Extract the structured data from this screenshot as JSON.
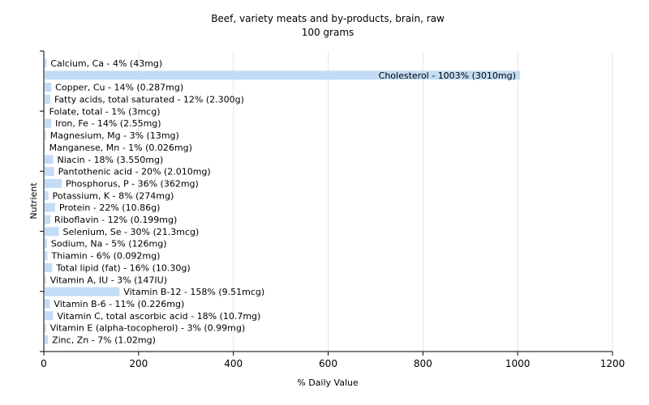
{
  "chart_data": {
    "type": "bar",
    "orientation": "horizontal",
    "title": "Beef, variety meats and by-products, brain, raw",
    "subtitle": "100 grams",
    "xlabel": "% Daily Value",
    "ylabel": "Nutrient",
    "xlim": [
      0,
      1200
    ],
    "xticks": [
      0,
      200,
      400,
      600,
      800,
      1000,
      1200
    ],
    "grid": true,
    "bar_color": "#c2dcf6",
    "categories": [
      "Calcium, Ca",
      "Cholesterol",
      "Copper, Cu",
      "Fatty acids, total saturated",
      "Folate, total",
      "Iron, Fe",
      "Magnesium, Mg",
      "Manganese, Mn",
      "Niacin",
      "Pantothenic acid",
      "Phosphorus, P",
      "Potassium, K",
      "Protein",
      "Riboflavin",
      "Selenium, Se",
      "Sodium, Na",
      "Thiamin",
      "Total lipid (fat)",
      "Vitamin A, IU",
      "Vitamin B-12",
      "Vitamin B-6",
      "Vitamin C, total ascorbic acid",
      "Vitamin E (alpha-tocopherol)",
      "Zinc, Zn"
    ],
    "values": [
      4,
      1003,
      14,
      12,
      1,
      14,
      3,
      1,
      18,
      20,
      36,
      8,
      22,
      12,
      30,
      5,
      6,
      16,
      3,
      158,
      11,
      18,
      3,
      7
    ],
    "labels": [
      "Calcium, Ca - 4% (43mg)",
      "Cholesterol - 1003% (3010mg)",
      "Copper, Cu - 14% (0.287mg)",
      "Fatty acids, total saturated - 12% (2.300g)",
      "Folate, total - 1% (3mcg)",
      "Iron, Fe - 14% (2.55mg)",
      "Magnesium, Mg - 3% (13mg)",
      "Manganese, Mn - 1% (0.026mg)",
      "Niacin - 18% (3.550mg)",
      "Pantothenic acid - 20% (2.010mg)",
      "Phosphorus, P - 36% (362mg)",
      "Potassium, K - 8% (274mg)",
      "Protein - 22% (10.86g)",
      "Riboflavin - 12% (0.199mg)",
      "Selenium, Se - 30% (21.3mcg)",
      "Sodium, Na - 5% (126mg)",
      "Thiamin - 6% (0.092mg)",
      "Total lipid (fat) - 16% (10.30g)",
      "Vitamin A, IU - 3% (147IU)",
      "Vitamin B-12 - 158% (9.51mcg)",
      "Vitamin B-6 - 11% (0.226mg)",
      "Vitamin C, total ascorbic acid - 18% (10.7mg)",
      "Vitamin E (alpha-tocopherol) - 3% (0.99mg)",
      "Zinc, Zn - 7% (1.02mg)"
    ]
  }
}
